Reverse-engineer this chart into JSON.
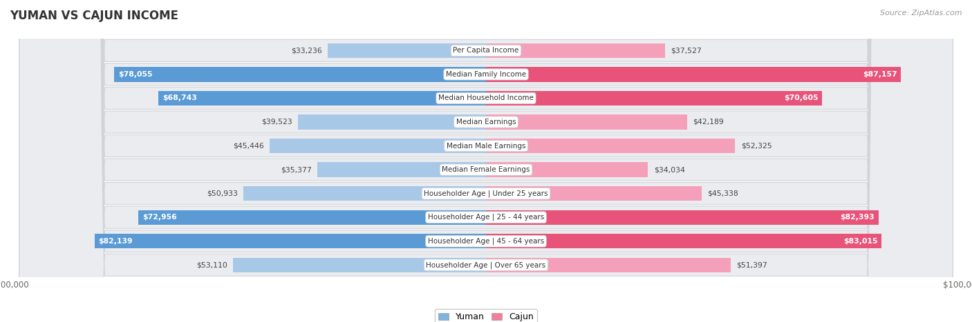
{
  "title": "YUMAN VS CAJUN INCOME",
  "source": "Source: ZipAtlas.com",
  "categories": [
    "Per Capita Income",
    "Median Family Income",
    "Median Household Income",
    "Median Earnings",
    "Median Male Earnings",
    "Median Female Earnings",
    "Householder Age | Under 25 years",
    "Householder Age | 25 - 44 years",
    "Householder Age | 45 - 64 years",
    "Householder Age | Over 65 years"
  ],
  "yuman_values": [
    33236,
    78055,
    68743,
    39523,
    45446,
    35377,
    50933,
    72956,
    82139,
    53110
  ],
  "cajun_values": [
    37527,
    87157,
    70605,
    42189,
    52325,
    34034,
    45338,
    82393,
    83015,
    51397
  ],
  "yuman_labels": [
    "$33,236",
    "$78,055",
    "$68,743",
    "$39,523",
    "$45,446",
    "$35,377",
    "$50,933",
    "$72,956",
    "$82,139",
    "$53,110"
  ],
  "cajun_labels": [
    "$37,527",
    "$87,157",
    "$70,605",
    "$42,189",
    "$52,325",
    "$34,034",
    "$45,338",
    "$82,393",
    "$83,015",
    "$51,397"
  ],
  "yuman_color_light": "#a8c8e8",
  "yuman_color_dark": "#5b9bd5",
  "cajun_color_light": "#f4a0bb",
  "cajun_color_dark": "#e8537a",
  "yuman_dark_threshold": 60000,
  "cajun_dark_threshold": 60000,
  "max_value": 100000,
  "bg_color": "#f4f4f4",
  "row_bg_light": "#f0f0f0",
  "row_bg_white": "#fafafa",
  "label_dark_color": "#444444",
  "label_light_color": "#ffffff",
  "legend_yuman_color": "#7fb3e0",
  "legend_cajun_color": "#f08098",
  "title_color": "#333333",
  "source_color": "#999999",
  "axis_label_color": "#666666"
}
